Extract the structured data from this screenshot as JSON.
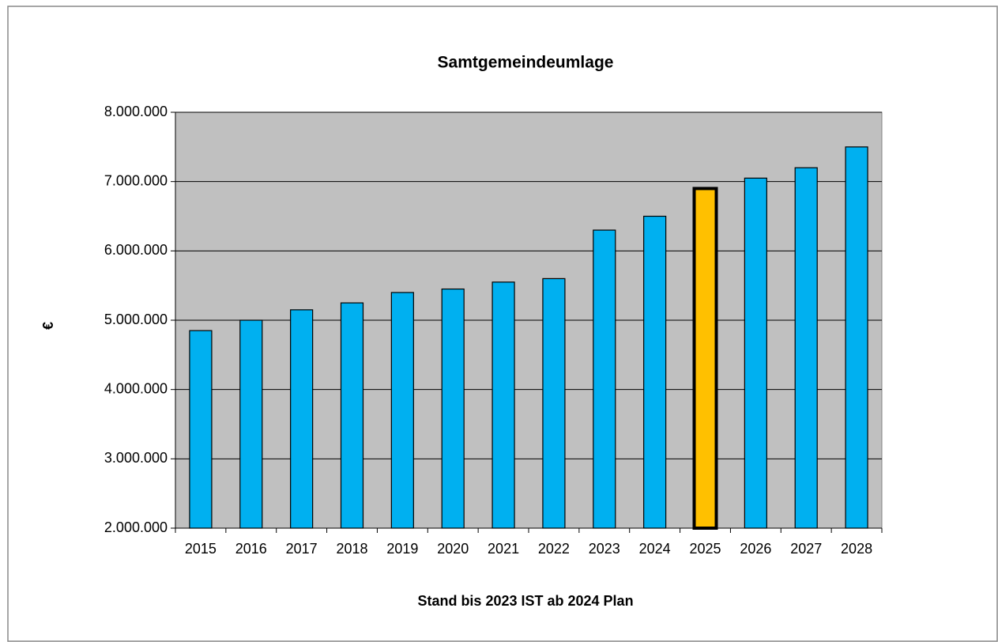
{
  "chart_data": {
    "type": "bar",
    "title": "Samtgemeindeumlage",
    "xlabel": "Stand bis 2023 IST ab 2024 Plan",
    "ylabel": "€",
    "categories": [
      "2015",
      "2016",
      "2017",
      "2018",
      "2019",
      "2020",
      "2021",
      "2022",
      "2023",
      "2024",
      "2025",
      "2026",
      "2027",
      "2028"
    ],
    "values": [
      4850000,
      5000000,
      5150000,
      5250000,
      5400000,
      5450000,
      5550000,
      5600000,
      6300000,
      6500000,
      6900000,
      7050000,
      7200000,
      7500000
    ],
    "color": "#00b0f0",
    "colors": [
      "#00b0f0",
      "#00b0f0",
      "#00b0f0",
      "#00b0f0",
      "#00b0f0",
      "#00b0f0",
      "#00b0f0",
      "#00b0f0",
      "#00b0f0",
      "#00b0f0",
      "#ffc000",
      "#00b0f0",
      "#00b0f0",
      "#00b0f0"
    ],
    "ylim": [
      2000000,
      8000000
    ],
    "yticks": [
      {
        "value": 2000000,
        "label": "2.000.000"
      },
      {
        "value": 3000000,
        "label": "3.000.000"
      },
      {
        "value": 4000000,
        "label": "4.000.000"
      },
      {
        "value": 5000000,
        "label": "5.000.000"
      },
      {
        "value": 6000000,
        "label": "6.000.000"
      },
      {
        "value": 7000000,
        "label": "7.000.000"
      },
      {
        "value": 8000000,
        "label": "8.000.000"
      }
    ],
    "grid": true
  }
}
